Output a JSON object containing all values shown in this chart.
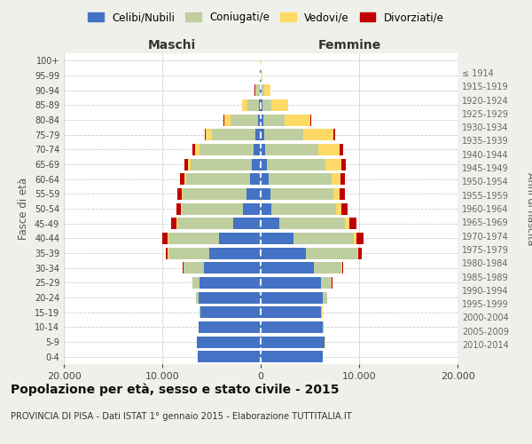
{
  "age_groups": [
    "100+",
    "95-99",
    "90-94",
    "85-89",
    "80-84",
    "75-79",
    "70-74",
    "65-69",
    "60-64",
    "55-59",
    "50-54",
    "45-49",
    "40-44",
    "35-39",
    "30-34",
    "25-29",
    "20-24",
    "15-19",
    "10-14",
    "5-9",
    "0-4"
  ],
  "birth_years": [
    "≤ 1914",
    "1915-1919",
    "1920-1924",
    "1925-1929",
    "1930-1934",
    "1935-1939",
    "1940-1944",
    "1945-1949",
    "1950-1954",
    "1955-1959",
    "1960-1964",
    "1965-1969",
    "1970-1974",
    "1975-1979",
    "1980-1984",
    "1985-1989",
    "1990-1994",
    "1995-1999",
    "2000-2004",
    "2005-2009",
    "2010-2014"
  ],
  "male": {
    "celibi": [
      30,
      50,
      80,
      150,
      300,
      500,
      700,
      900,
      1100,
      1400,
      1800,
      2800,
      4200,
      5200,
      5800,
      6200,
      6300,
      6100,
      6300,
      6500,
      6400
    ],
    "coniugati": [
      15,
      60,
      350,
      1200,
      2800,
      4500,
      5500,
      6200,
      6500,
      6500,
      6200,
      5700,
      5200,
      4200,
      2000,
      700,
      250,
      80,
      40,
      20,
      15
    ],
    "vedovi": [
      3,
      20,
      150,
      500,
      600,
      550,
      450,
      250,
      150,
      100,
      70,
      50,
      40,
      25,
      15,
      8,
      4,
      2,
      1,
      1,
      1
    ],
    "divorziati": [
      1,
      5,
      20,
      40,
      60,
      150,
      280,
      380,
      420,
      450,
      520,
      580,
      600,
      200,
      80,
      40,
      15,
      8,
      3,
      2,
      1
    ]
  },
  "female": {
    "nubili": [
      25,
      40,
      70,
      150,
      250,
      350,
      450,
      600,
      800,
      950,
      1100,
      1900,
      3300,
      4600,
      5400,
      6100,
      6300,
      6100,
      6300,
      6500,
      6300
    ],
    "coniugate": [
      10,
      50,
      280,
      900,
      2200,
      4000,
      5400,
      6000,
      6400,
      6400,
      6600,
      6700,
      6200,
      5200,
      2800,
      1100,
      450,
      160,
      65,
      30,
      18
    ],
    "vedove": [
      8,
      80,
      600,
      1700,
      2600,
      3000,
      2200,
      1600,
      900,
      650,
      520,
      420,
      220,
      110,
      55,
      22,
      10,
      5,
      3,
      2,
      1
    ],
    "divorziate": [
      1,
      5,
      20,
      50,
      80,
      180,
      300,
      420,
      480,
      530,
      620,
      720,
      720,
      320,
      160,
      65,
      22,
      10,
      5,
      3,
      2
    ]
  },
  "colors": {
    "celibi": "#4472C4",
    "coniugati": "#BFCE9E",
    "vedovi": "#FFD966",
    "divorziati": "#C00000"
  },
  "xlim": 20000,
  "title": "Popolazione per età, sesso e stato civile - 2015",
  "subtitle": "PROVINCIA DI PISA - Dati ISTAT 1° gennaio 2015 - Elaborazione TUTTITALIA.IT",
  "ylabel_left": "Fasce di età",
  "ylabel_right": "Anni di nascita",
  "xlabel_left": "Maschi",
  "xlabel_right": "Femmine",
  "background": "#f0f0eb",
  "plot_bg": "#ffffff"
}
